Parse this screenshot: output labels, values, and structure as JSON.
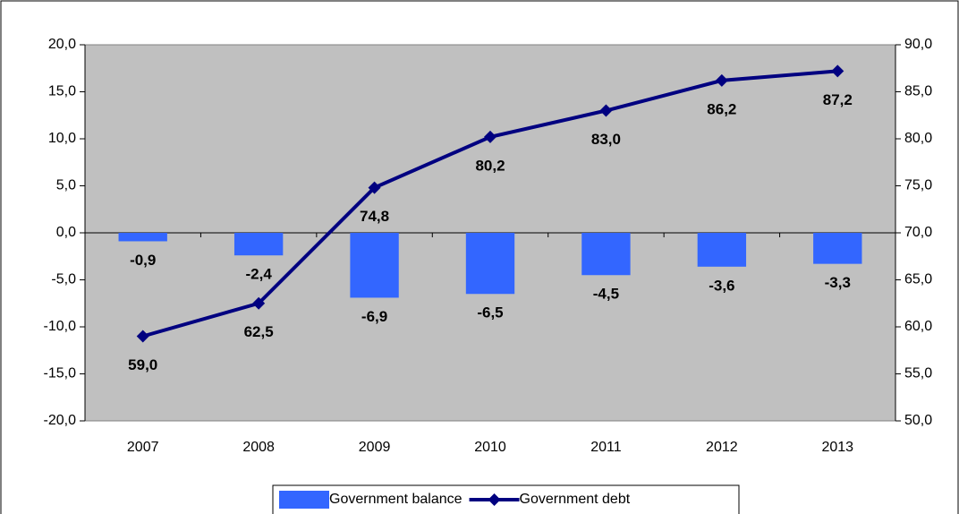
{
  "chart_data": {
    "type": "combo",
    "categories": [
      "2007",
      "2008",
      "2009",
      "2010",
      "2011",
      "2012",
      "2013"
    ],
    "series": [
      {
        "name": "Government balance",
        "type": "bar",
        "color": "#3366ff",
        "axis": "y",
        "values": [
          -0.9,
          -2.4,
          -6.9,
          -6.5,
          -4.5,
          -3.6,
          -3.3
        ],
        "value_labels": [
          "-0,9",
          "-2,4",
          "-6,9",
          "-6,5",
          "-4,5",
          "-3,6",
          "-3,3"
        ]
      },
      {
        "name": "Government debt",
        "type": "line",
        "color": "#000080",
        "axis": "y2",
        "values": [
          59.0,
          62.5,
          74.8,
          80.2,
          83.0,
          86.2,
          87.2
        ],
        "value_labels": [
          "59,0",
          "62,5",
          "74,8",
          "80,2",
          "83,0",
          "86,2",
          "87,2"
        ]
      }
    ],
    "ylim": [
      -20,
      20
    ],
    "yticks": [
      {
        "value": -20,
        "label": "-20,0"
      },
      {
        "value": -15,
        "label": "-15,0"
      },
      {
        "value": -10,
        "label": "-10,0"
      },
      {
        "value": -5,
        "label": "-5,0"
      },
      {
        "value": 0,
        "label": "0,0"
      },
      {
        "value": 5,
        "label": "5,0"
      },
      {
        "value": 10,
        "label": "10,0"
      },
      {
        "value": 15,
        "label": "15,0"
      },
      {
        "value": 20,
        "label": "20,0"
      }
    ],
    "y2lim": [
      50,
      90
    ],
    "y2ticks": [
      {
        "value": 50,
        "label": "50,0"
      },
      {
        "value": 55,
        "label": "55,0"
      },
      {
        "value": 60,
        "label": "60,0"
      },
      {
        "value": 65,
        "label": "65,0"
      },
      {
        "value": 70,
        "label": "70,0"
      },
      {
        "value": 75,
        "label": "75,0"
      },
      {
        "value": 80,
        "label": "80,0"
      },
      {
        "value": 85,
        "label": "85,0"
      },
      {
        "value": 90,
        "label": "90,0"
      }
    ],
    "plot_background": "#c0c0c0",
    "legend": "bottom"
  }
}
